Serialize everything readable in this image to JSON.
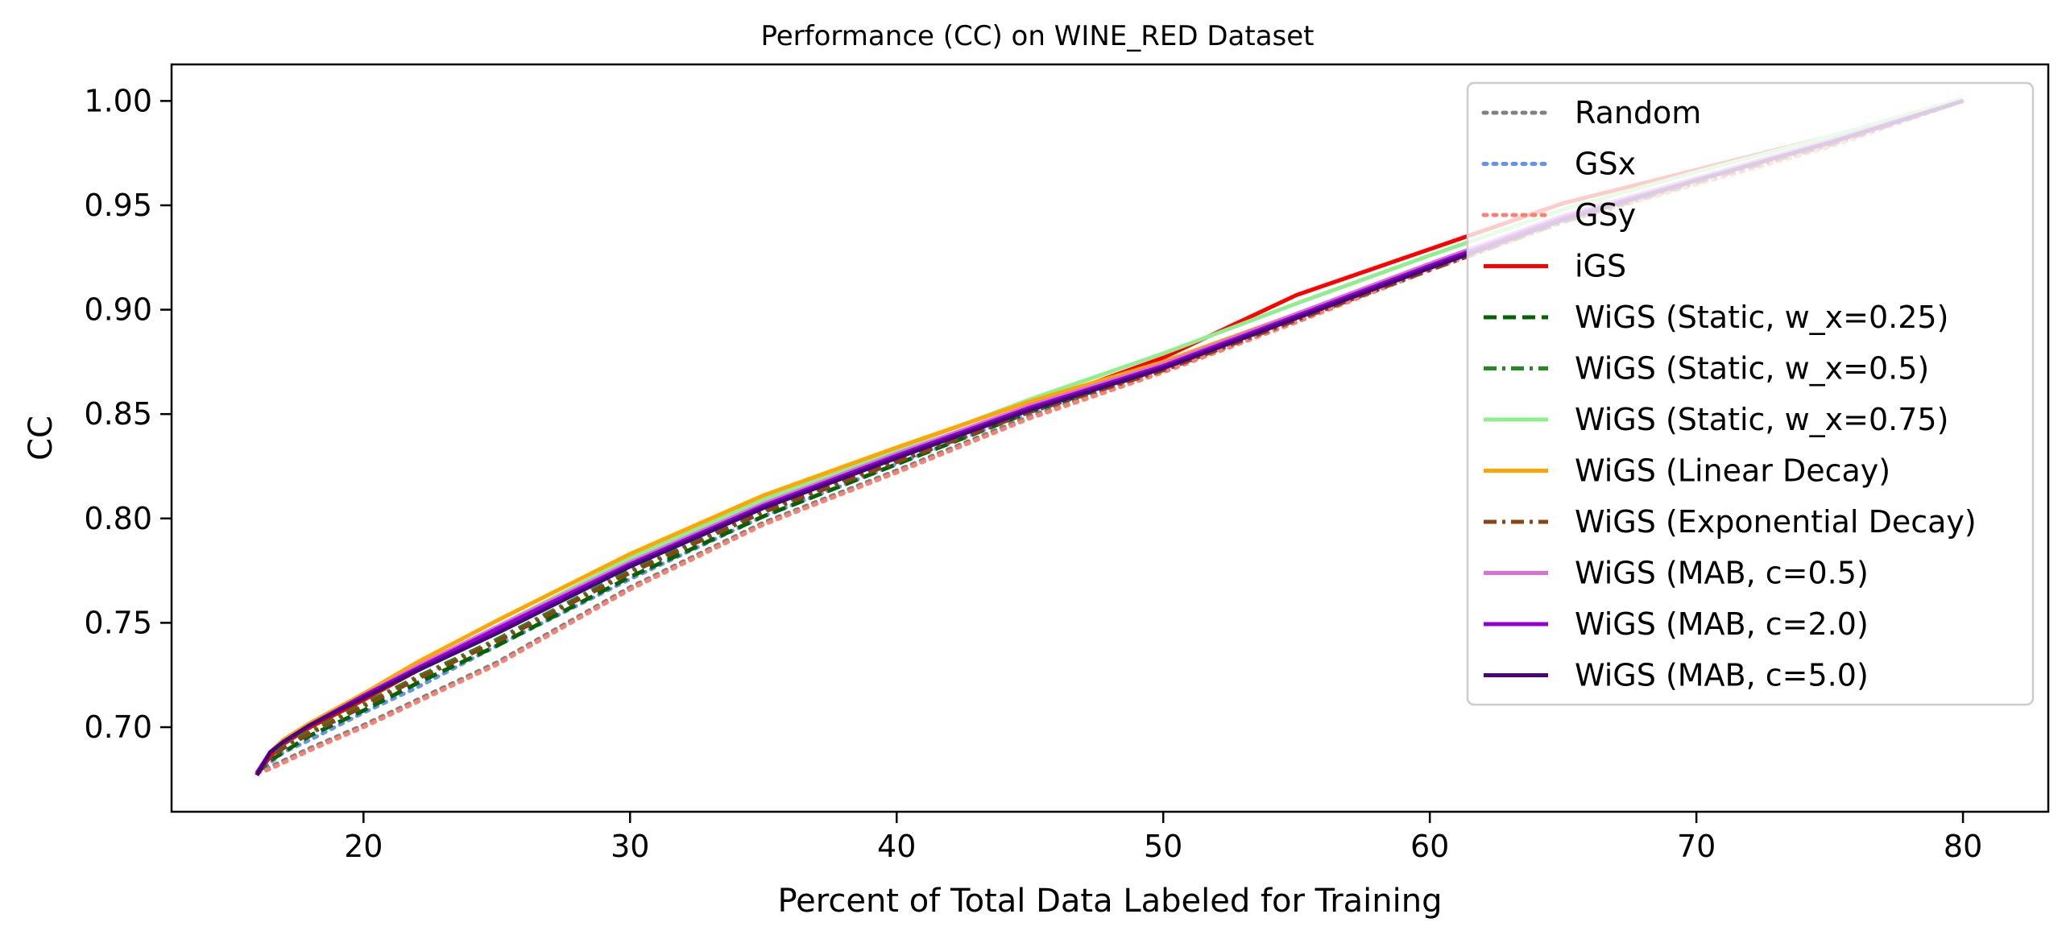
{
  "chart_data": {
    "type": "line",
    "title": "Performance (CC) on WINE_RED Dataset",
    "xlabel": "Percent of Total Data Labeled for Training",
    "ylabel": "CC",
    "xlim": [
      12.8,
      83.2
    ],
    "ylim": [
      0.6595,
      1.0175
    ],
    "xticks": [
      20,
      30,
      40,
      50,
      60,
      70,
      80
    ],
    "xtick_labels": [
      "20",
      "30",
      "40",
      "50",
      "60",
      "70",
      "80"
    ],
    "yticks": [
      0.7,
      0.75,
      0.8,
      0.85,
      0.9,
      0.95,
      1.0
    ],
    "ytick_labels": [
      "0.70",
      "0.75",
      "0.80",
      "0.85",
      "0.90",
      "0.95",
      "1.00"
    ],
    "grid": false,
    "legend_position": "upper-right",
    "x": [
      16,
      16.5,
      17,
      18,
      20,
      22,
      25,
      30,
      35,
      40,
      45,
      50,
      55,
      60,
      65,
      70,
      75,
      80
    ],
    "series": [
      {
        "name": "Random",
        "color": "#808080",
        "style": "dotted",
        "values": [
          0.678,
          0.681,
          0.684,
          0.69,
          0.701,
          0.713,
          0.731,
          0.767,
          0.798,
          0.823,
          0.849,
          0.871,
          0.895,
          0.92,
          0.943,
          0.961,
          0.979,
          1.0
        ]
      },
      {
        "name": "GSx",
        "color": "#6495ED",
        "style": "dotted",
        "values": [
          0.678,
          0.683,
          0.688,
          0.694,
          0.707,
          0.719,
          0.739,
          0.771,
          0.801,
          0.826,
          0.851,
          0.874,
          0.898,
          0.922,
          0.944,
          0.962,
          0.98,
          1.0
        ]
      },
      {
        "name": "GSy",
        "color": "#FA8072",
        "style": "dotted",
        "values": [
          0.678,
          0.68,
          0.683,
          0.689,
          0.7,
          0.712,
          0.73,
          0.766,
          0.797,
          0.822,
          0.848,
          0.87,
          0.894,
          0.919,
          0.942,
          0.96,
          0.978,
          1.0
        ]
      },
      {
        "name": "iGS",
        "color": "#FF0000",
        "style": "solid",
        "values": [
          0.677,
          0.686,
          0.692,
          0.7,
          0.713,
          0.727,
          0.746,
          0.778,
          0.806,
          0.83,
          0.854,
          0.877,
          0.907,
          0.929,
          0.951,
          0.967,
          0.983,
          1.0
        ]
      },
      {
        "name": "WiGS (Static, w_x=0.25)",
        "color": "#006400",
        "style": "dashed",
        "values": [
          0.678,
          0.684,
          0.688,
          0.696,
          0.708,
          0.721,
          0.739,
          0.772,
          0.801,
          0.826,
          0.851,
          0.872,
          0.896,
          0.92,
          0.943,
          0.962,
          0.98,
          1.0
        ]
      },
      {
        "name": "WiGS (Static, w_x=0.5)",
        "color": "#228B22",
        "style": "dashdot",
        "values": [
          0.678,
          0.686,
          0.691,
          0.698,
          0.711,
          0.724,
          0.742,
          0.775,
          0.804,
          0.828,
          0.853,
          0.874,
          0.898,
          0.922,
          0.945,
          0.963,
          0.981,
          1.0
        ]
      },
      {
        "name": "WiGS (Static, w_x=0.75)",
        "color": "#90EE90",
        "style": "solid",
        "values": [
          0.678,
          0.688,
          0.693,
          0.701,
          0.715,
          0.729,
          0.748,
          0.781,
          0.809,
          0.833,
          0.857,
          0.879,
          0.903,
          0.926,
          0.948,
          0.966,
          0.983,
          1.001
        ]
      },
      {
        "name": "WiGS (Linear Decay)",
        "color": "#FFA500",
        "style": "solid",
        "values": [
          0.678,
          0.688,
          0.694,
          0.702,
          0.716,
          0.731,
          0.751,
          0.783,
          0.811,
          0.834,
          0.856,
          0.875,
          0.898,
          0.922,
          0.945,
          0.963,
          0.981,
          1.0
        ]
      },
      {
        "name": "WiGS (Exponential Decay)",
        "color": "#8B4513",
        "style": "dashdot",
        "values": [
          0.678,
          0.685,
          0.69,
          0.697,
          0.71,
          0.723,
          0.741,
          0.774,
          0.803,
          0.827,
          0.851,
          0.871,
          0.895,
          0.919,
          0.942,
          0.961,
          0.979,
          1.0
        ]
      },
      {
        "name": "WiGS (MAB, c=0.5)",
        "color": "#DA70D6",
        "style": "solid",
        "values": [
          0.678,
          0.688,
          0.693,
          0.701,
          0.715,
          0.729,
          0.748,
          0.779,
          0.807,
          0.831,
          0.854,
          0.874,
          0.898,
          0.922,
          0.945,
          0.963,
          0.981,
          1.0
        ]
      },
      {
        "name": "WiGS (MAB, c=2.0)",
        "color": "#9400D3",
        "style": "solid",
        "values": [
          0.678,
          0.688,
          0.693,
          0.701,
          0.715,
          0.728,
          0.747,
          0.778,
          0.806,
          0.83,
          0.853,
          0.873,
          0.897,
          0.921,
          0.944,
          0.962,
          0.98,
          1.0
        ]
      },
      {
        "name": "WiGS (MAB, c=5.0)",
        "color": "#4B0082",
        "style": "solid",
        "values": [
          0.677,
          0.688,
          0.693,
          0.701,
          0.714,
          0.727,
          0.745,
          0.777,
          0.805,
          0.829,
          0.852,
          0.872,
          0.896,
          0.92,
          0.943,
          0.962,
          0.98,
          1.0
        ]
      }
    ]
  }
}
